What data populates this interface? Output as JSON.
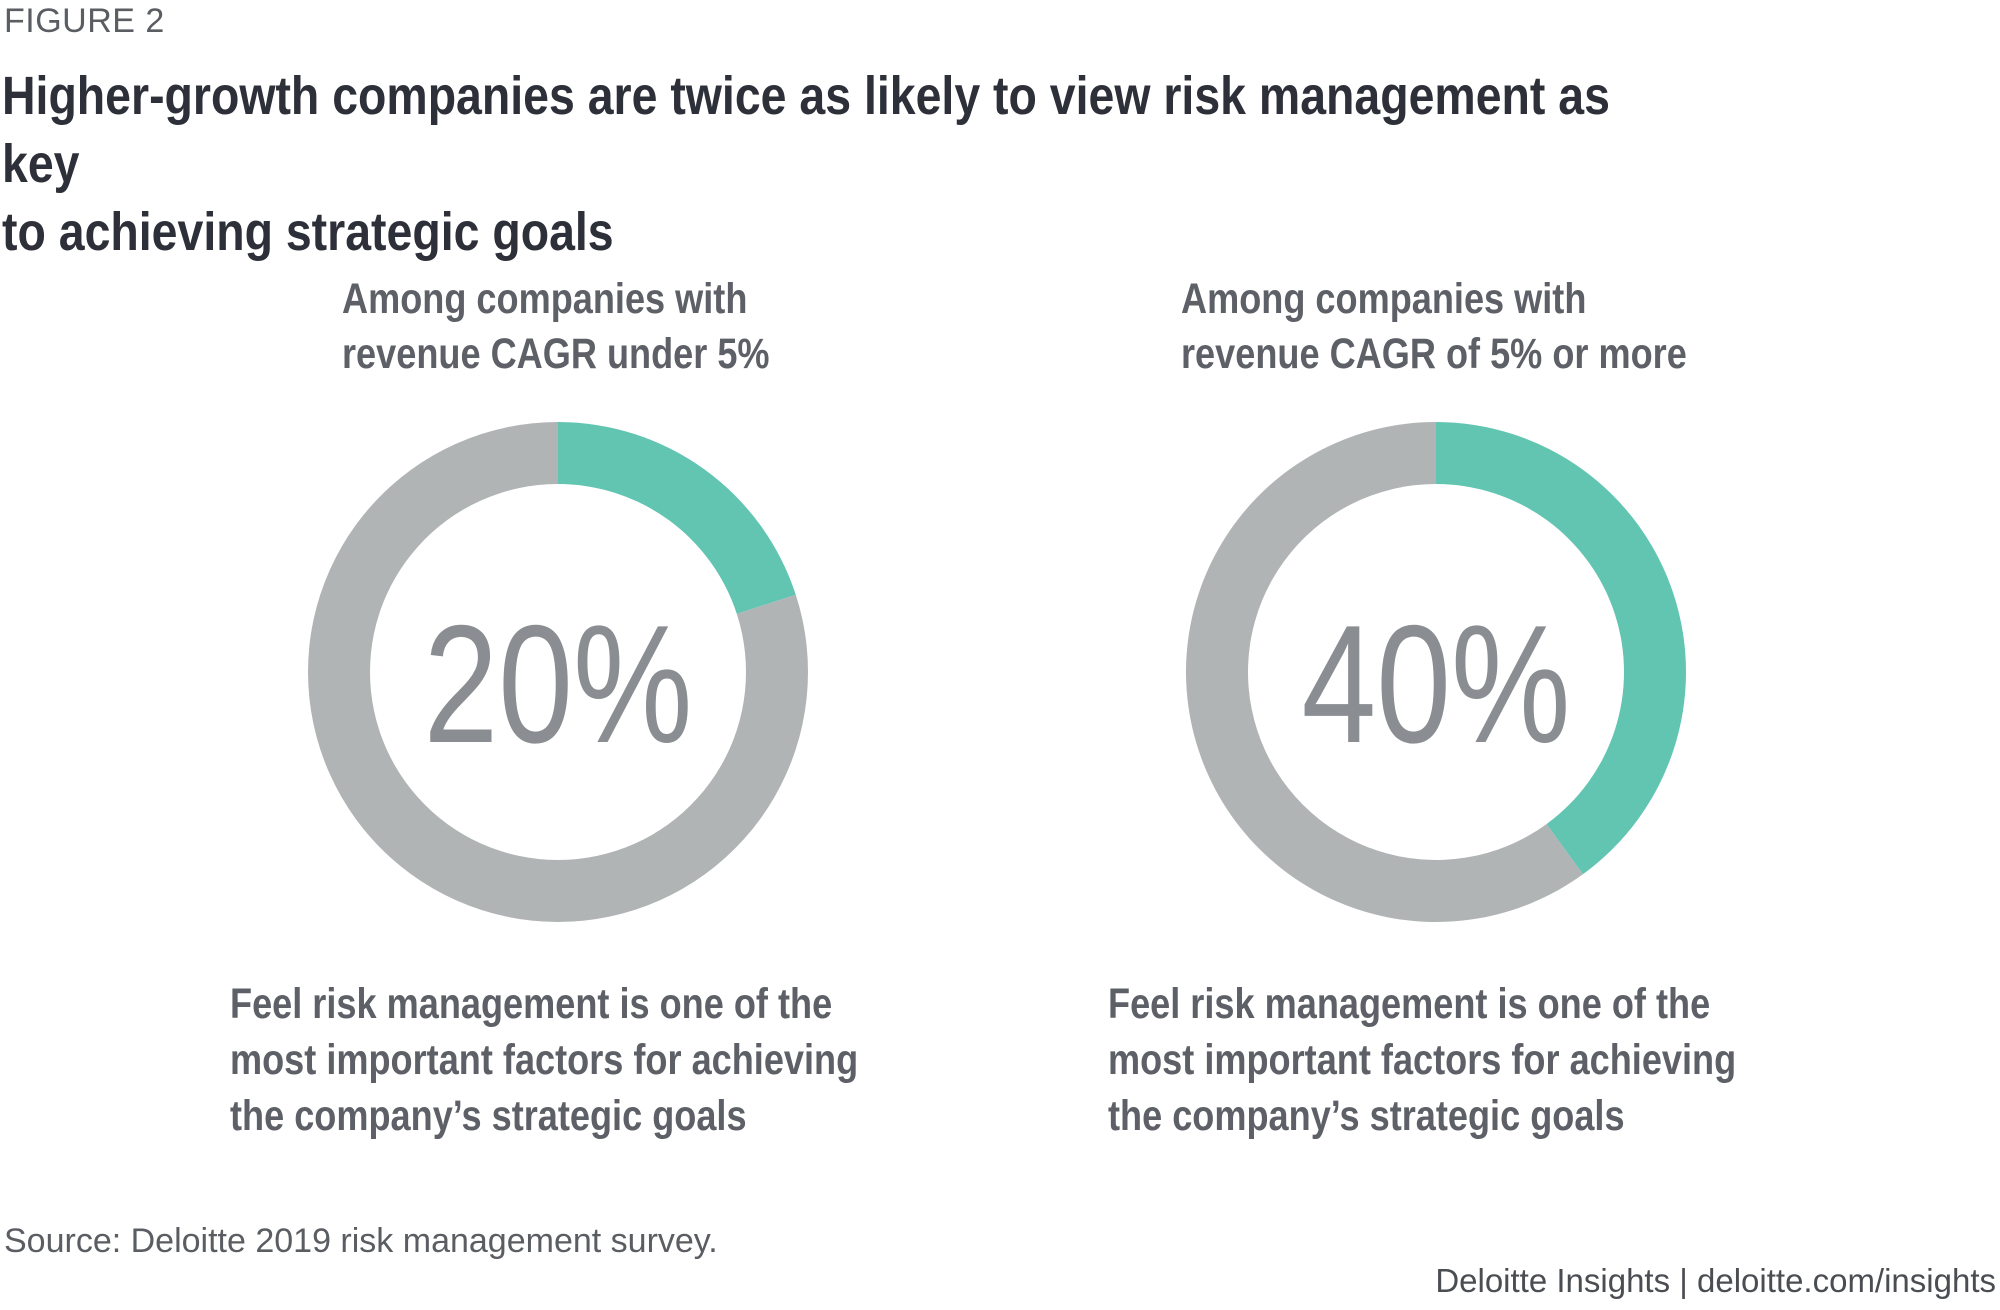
{
  "figure_label": "FIGURE 2",
  "title_lines": [
    "Higher-growth companies are twice as likely to view risk management as key",
    "to achieving strategic goals"
  ],
  "source": "Source: Deloitte 2019 risk management survey.",
  "credit": "Deloitte Insights | deloitte.com/insights",
  "colors": {
    "highlight": "#62c5b2",
    "remainder": "#b1b4b5",
    "center_text": "#8a8d91"
  },
  "chart_data": [
    {
      "type": "pie",
      "subtype": "donut",
      "subtitle_lines": [
        "Among companies with",
        "revenue CAGR under 5%"
      ],
      "center_label": "20%",
      "slices": [
        {
          "name": "Feel risk management is key",
          "value": 20
        },
        {
          "name": "Other",
          "value": 80
        }
      ],
      "description_lines": [
        "Feel risk management is one of the",
        "most important factors for achieving",
        "the company’s strategic goals"
      ]
    },
    {
      "type": "pie",
      "subtype": "donut",
      "subtitle_lines": [
        "Among companies with",
        "revenue CAGR of 5% or more"
      ],
      "center_label": "40%",
      "slices": [
        {
          "name": "Feel risk management is key",
          "value": 40
        },
        {
          "name": "Other",
          "value": 60
        }
      ],
      "description_lines": [
        "Feel risk management is one of the",
        "most important factors for achieving",
        "the company’s strategic goals"
      ]
    }
  ]
}
